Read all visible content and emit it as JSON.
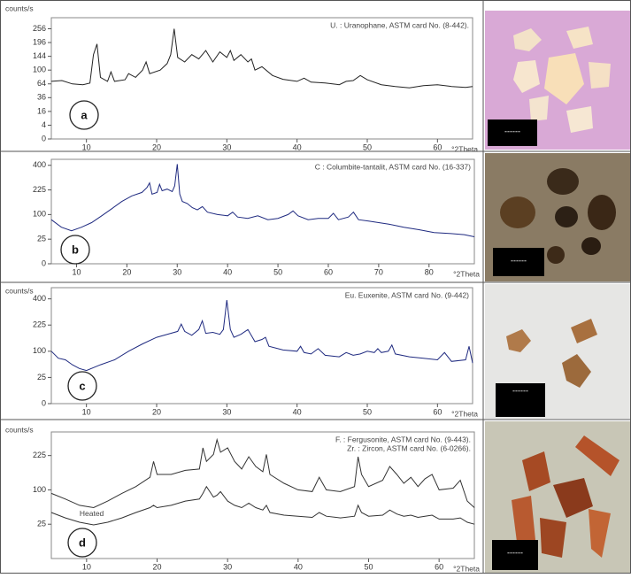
{
  "chart_data": [
    {
      "type": "line",
      "label": "a",
      "ylabel": "counts/s",
      "xlabel": "°2Theta",
      "yscale": "sqrt",
      "annotations": [
        "U. : Uranophane, ASTM card No. (8-442)."
      ],
      "xlim": [
        5,
        65
      ],
      "xticks": [
        10,
        20,
        30,
        40,
        50,
        60
      ],
      "ylim": [
        0,
        310
      ],
      "yticks": [
        0,
        4,
        16,
        36,
        64,
        100,
        144,
        196,
        256
      ],
      "x": [
        5,
        6.5,
        8,
        9.5,
        10.5,
        11,
        11.5,
        12,
        13,
        13.5,
        14,
        15.5,
        16,
        17,
        18,
        18.5,
        19,
        20.5,
        21.5,
        22,
        22.5,
        23,
        24,
        25,
        26,
        27,
        28,
        29,
        30,
        30.5,
        31,
        32,
        33,
        33.5,
        34,
        35,
        36.5,
        38,
        40,
        41,
        42,
        44,
        46,
        47,
        48,
        49,
        50,
        52,
        54,
        56,
        58,
        60,
        62,
        64,
        65
      ],
      "series": [
        {
          "color": "#222222",
          "values": [
            70,
            72,
            64,
            62,
            66,
            150,
            190,
            80,
            70,
            95,
            70,
            74,
            90,
            80,
            100,
            125,
            90,
            100,
            120,
            150,
            256,
            140,
            125,
            150,
            135,
            165,
            125,
            160,
            140,
            165,
            130,
            150,
            125,
            135,
            100,
            110,
            85,
            75,
            70,
            78,
            68,
            66,
            62,
            70,
            72,
            85,
            74,
            62,
            58,
            55,
            60,
            62,
            58,
            56,
            58
          ]
        }
      ]
    },
    {
      "type": "line",
      "label": "b",
      "xlabel": "°2Theta",
      "yscale": "sqrt",
      "annotations": [
        "C : Columbite-tantalit, ASTM card No. (16-337)"
      ],
      "xlim": [
        5,
        89
      ],
      "xticks": [
        10,
        20,
        30,
        40,
        50,
        60,
        70,
        80
      ],
      "ylim": [
        0,
        450
      ],
      "yticks": [
        0,
        25,
        100,
        225,
        400
      ],
      "x": [
        5,
        7,
        9,
        11,
        13,
        15,
        17,
        19,
        21,
        23,
        24,
        24.5,
        25,
        26,
        26.5,
        27,
        28,
        29,
        29.5,
        30,
        30.5,
        31,
        32,
        33,
        34,
        35,
        36,
        38,
        40,
        41,
        42,
        44,
        46,
        48,
        50,
        52,
        53,
        54,
        56,
        58,
        60,
        61,
        62,
        64,
        65,
        66,
        68,
        70,
        72,
        75,
        78,
        81,
        84,
        87,
        89
      ],
      "series": [
        {
          "color": "#1f2a80",
          "values": [
            80,
            55,
            45,
            55,
            70,
            95,
            125,
            160,
            190,
            210,
            240,
            270,
            200,
            210,
            260,
            220,
            230,
            215,
            250,
            410,
            200,
            160,
            150,
            130,
            120,
            135,
            110,
            100,
            95,
            110,
            90,
            85,
            95,
            80,
            85,
            100,
            115,
            95,
            80,
            85,
            85,
            105,
            80,
            90,
            110,
            80,
            75,
            70,
            65,
            55,
            48,
            40,
            38,
            35,
            30
          ]
        }
      ]
    },
    {
      "type": "line",
      "label": "c",
      "ylabel": "counts/s",
      "xlabel": "°2Theta",
      "yscale": "sqrt",
      "annotations": [
        "Eu. Euxenite, ASTM card No. (9-442)"
      ],
      "xlim": [
        5,
        65
      ],
      "xticks": [
        10,
        20,
        30,
        40,
        50,
        60
      ],
      "ylim": [
        0,
        490
      ],
      "yticks": [
        0,
        25,
        100,
        225,
        400
      ],
      "x": [
        5,
        6,
        7,
        8,
        9,
        10,
        12,
        14,
        16,
        18,
        20,
        22,
        23,
        23.5,
        24,
        25,
        26,
        26.5,
        27,
        28,
        29,
        29.5,
        30,
        30.5,
        31,
        32,
        33,
        34,
        35,
        35.5,
        36,
        38,
        40,
        40.5,
        41,
        42,
        43,
        44,
        46,
        47,
        48,
        49,
        50,
        51,
        51.5,
        52,
        53,
        53.5,
        54,
        56,
        58,
        60,
        61,
        62,
        64,
        64.5,
        65
      ],
      "series": [
        {
          "color": "#1f2a80",
          "values": [
            100,
            75,
            70,
            55,
            45,
            40,
            55,
            70,
            100,
            130,
            160,
            180,
            190,
            230,
            190,
            170,
            200,
            250,
            180,
            185,
            175,
            200,
            390,
            200,
            160,
            175,
            200,
            140,
            150,
            160,
            120,
            105,
            100,
            120,
            95,
            90,
            110,
            85,
            80,
            95,
            85,
            90,
            100,
            95,
            110,
            95,
            100,
            125,
            90,
            80,
            75,
            70,
            95,
            65,
            70,
            120,
            60
          ]
        }
      ]
    },
    {
      "type": "line",
      "label": "d",
      "ylabel": "counts/s",
      "xlabel": "°2Theta",
      "yscale": "sqrt",
      "annotations": [
        "F. : Fergusonite, ASTM card No. (9-443).",
        "Zr. : Zircon, ASTM card No. (6-0266)."
      ],
      "xlim": [
        5,
        65
      ],
      "xticks": [
        10,
        20,
        30,
        40,
        50,
        60
      ],
      "ylim": [
        0,
        340
      ],
      "yticks": [
        25,
        100,
        225
      ],
      "x": [
        5,
        7,
        9,
        11,
        13,
        15,
        17,
        19,
        19.5,
        20,
        22,
        24,
        26,
        26.5,
        27,
        28,
        28.5,
        29,
        30,
        31,
        32,
        33,
        34,
        35,
        35.5,
        36,
        38,
        40,
        42,
        43,
        44,
        46,
        48,
        48.5,
        49,
        50,
        52,
        53,
        54,
        55,
        56,
        57,
        58,
        59,
        60,
        62,
        63,
        64,
        65
      ],
      "series": [
        {
          "color": "#333333",
          "values": [
            90,
            75,
            60,
            55,
            70,
            90,
            110,
            140,
            200,
            150,
            150,
            165,
            170,
            260,
            200,
            230,
            300,
            240,
            260,
            200,
            170,
            220,
            180,
            160,
            230,
            150,
            120,
            100,
            95,
            140,
            100,
            95,
            110,
            220,
            150,
            110,
            130,
            180,
            150,
            120,
            140,
            110,
            135,
            150,
            100,
            105,
            130,
            70,
            55
          ]
        },
        {
          "name": "Heated",
          "color": "#333333",
          "values": [
            45,
            35,
            28,
            24,
            28,
            35,
            45,
            55,
            60,
            55,
            60,
            70,
            75,
            90,
            110,
            80,
            85,
            95,
            70,
            60,
            55,
            65,
            55,
            50,
            60,
            45,
            40,
            38,
            36,
            45,
            38,
            35,
            38,
            60,
            45,
            38,
            40,
            50,
            42,
            38,
            40,
            36,
            38,
            40,
            33,
            33,
            35,
            28,
            25
          ]
        }
      ]
    }
  ],
  "photos": [
    {
      "scale_label": "------"
    },
    {
      "scale_label": "------"
    },
    {
      "scale_label": "------"
    },
    {
      "scale_label": "------"
    }
  ]
}
